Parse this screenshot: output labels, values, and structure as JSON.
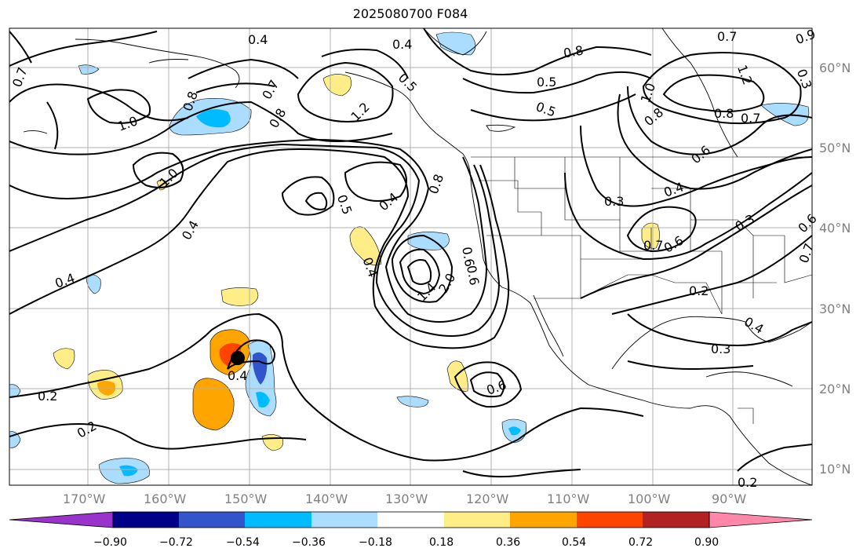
{
  "title": "2025080700 F084",
  "lon_labels": [
    "170°W",
    "160°W",
    "150°W",
    "140°W",
    "130°W",
    "120°W",
    "110°W",
    "100°W",
    "90°W"
  ],
  "lat_labels": [
    "60°N",
    "50°N",
    "40°N",
    "30°N",
    "20°N",
    "10°N"
  ],
  "contour_labels": [
    "0.4",
    "0.4",
    "0.8",
    "0.8",
    "0.7",
    "0.7",
    "0.5",
    "0.5",
    "0.5",
    "1.2",
    "1.0",
    "0.8",
    "0.7",
    "0.8",
    "1.2",
    "1.0",
    "0.8",
    "0.7",
    "0.6",
    "1.0",
    "0.4",
    "0.5",
    "0.4",
    "0.8",
    "0.3",
    "0.4",
    "0.3",
    "0.7",
    "0.6",
    "0.4",
    "1.4",
    "2.0",
    "0.6",
    "0.6",
    "0.2",
    "0.4",
    "0.4",
    "0.3",
    "0.6",
    "0.2",
    "0.2",
    "0.4",
    "0.2",
    "0.6",
    "0.7",
    "0.3",
    "0.9"
  ],
  "colorbar": {
    "ticks": [
      "−0.90",
      "−0.72",
      "−0.54",
      "−0.36",
      "−0.18",
      "0.18",
      "0.36",
      "0.54",
      "0.72",
      "0.90"
    ],
    "colors": [
      "#9933cc",
      "#000088",
      "#3355cc",
      "#00bbff",
      "#aaddff",
      "#ffffff",
      "#ffee88",
      "#ffa500",
      "#ff4400",
      "#b22222",
      "#ff88aa"
    ]
  },
  "marker": {
    "lon": -151.5,
    "lat": 23.5
  }
}
